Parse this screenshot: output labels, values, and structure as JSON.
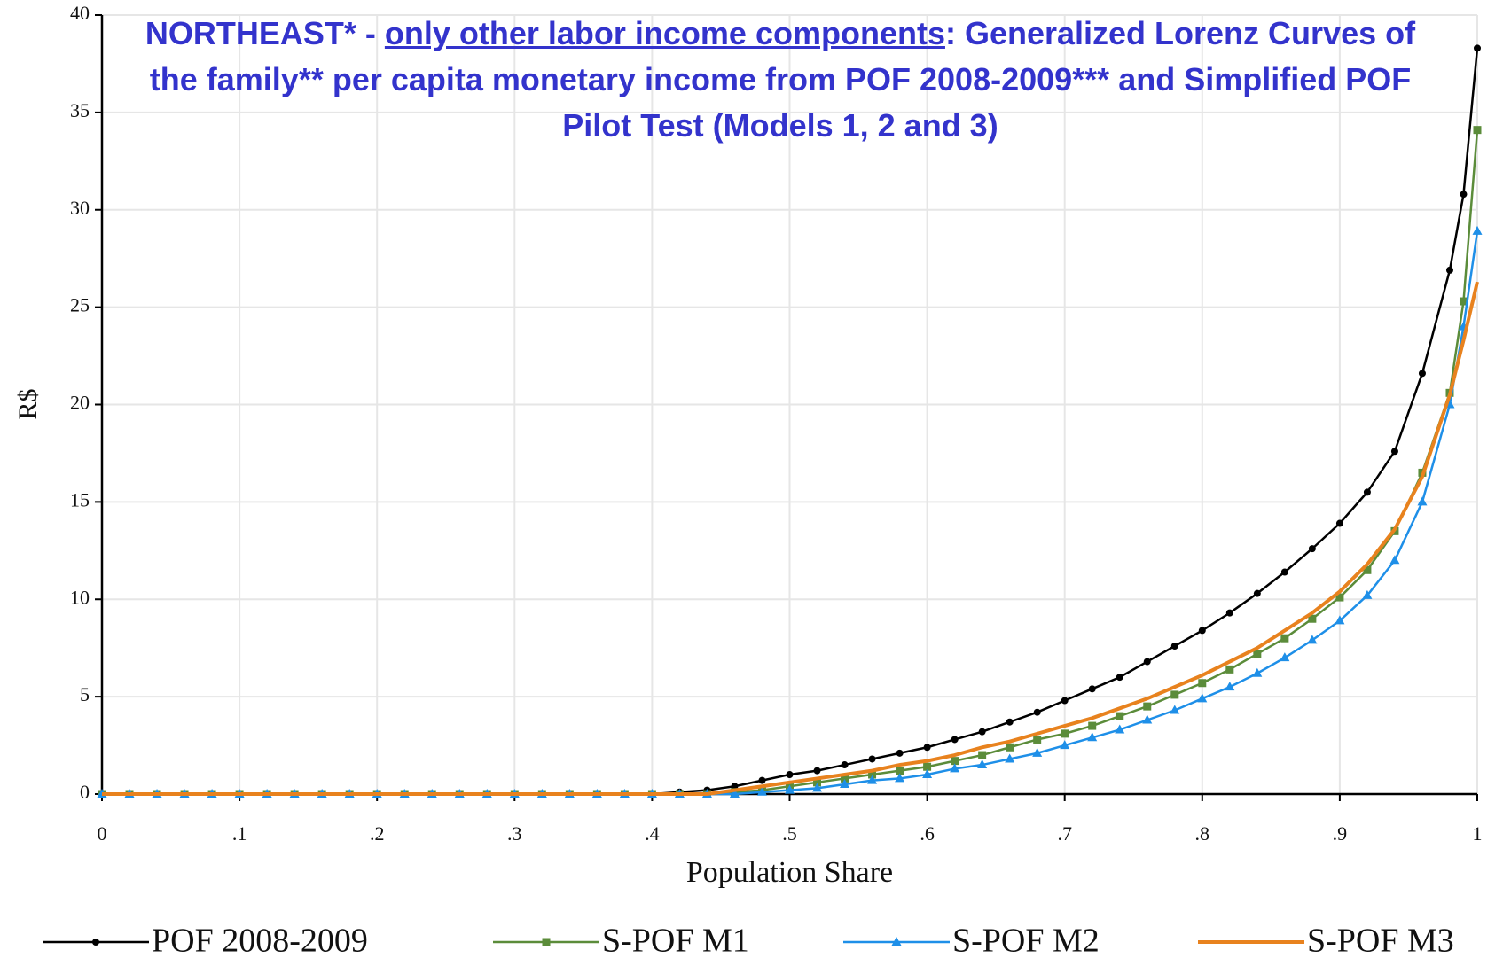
{
  "chart_data": {
    "type": "line",
    "title": [
      "NORTHEAST* - ",
      "only other labor income components",
      ": Generalized Lorenz Curves of the family** per capita monetary income from POF 2008-2009*** and Simplified POF Pilot Test (Models 1, 2 and 3)"
    ],
    "title_underlined": 1,
    "title_color": "#3333cc",
    "xlabel": "Population Share",
    "ylabel": "R$",
    "x": [
      0,
      0.02,
      0.04,
      0.06,
      0.08,
      0.1,
      0.12,
      0.14,
      0.16,
      0.18,
      0.2,
      0.22,
      0.24,
      0.26,
      0.28,
      0.3,
      0.32,
      0.34,
      0.36,
      0.38,
      0.4,
      0.42,
      0.44,
      0.46,
      0.48,
      0.5,
      0.52,
      0.54,
      0.56,
      0.58,
      0.6,
      0.62,
      0.64,
      0.66,
      0.68,
      0.7,
      0.72,
      0.74,
      0.76,
      0.78,
      0.8,
      0.82,
      0.84,
      0.86,
      0.88,
      0.9,
      0.92,
      0.94,
      0.96,
      0.98,
      0.99,
      1
    ],
    "series": [
      {
        "name": "POF 2008-2009",
        "color": "#000000",
        "marker": "circle",
        "values": [
          0,
          0,
          0,
          0,
          0,
          0,
          0,
          0,
          0,
          0,
          0,
          0,
          0,
          0,
          0,
          0,
          0,
          0,
          0,
          0,
          0,
          0.1,
          0.2,
          0.4,
          0.7,
          1.0,
          1.2,
          1.5,
          1.8,
          2.1,
          2.4,
          2.8,
          3.2,
          3.7,
          4.2,
          4.8,
          5.4,
          6.0,
          6.8,
          7.6,
          8.4,
          9.3,
          10.3,
          11.4,
          12.6,
          13.9,
          15.5,
          17.6,
          21.6,
          26.9,
          30.8,
          38.3
        ]
      },
      {
        "name": "S-POF M1",
        "color": "#5b8c3a",
        "marker": "square",
        "values": [
          0,
          0,
          0,
          0,
          0,
          0,
          0,
          0,
          0,
          0,
          0,
          0,
          0,
          0,
          0,
          0,
          0,
          0,
          0,
          0,
          0,
          0,
          0,
          0.1,
          0.2,
          0.4,
          0.6,
          0.8,
          1.0,
          1.2,
          1.4,
          1.7,
          2.0,
          2.4,
          2.8,
          3.1,
          3.5,
          4.0,
          4.5,
          5.1,
          5.7,
          6.4,
          7.2,
          8.0,
          9.0,
          10.1,
          11.5,
          13.5,
          16.5,
          20.6,
          25.3,
          34.1
        ]
      },
      {
        "name": "S-POF M2",
        "color": "#1e8fe8",
        "marker": "triangle",
        "values": [
          0,
          0,
          0,
          0,
          0,
          0,
          0,
          0,
          0,
          0,
          0,
          0,
          0,
          0,
          0,
          0,
          0,
          0,
          0,
          0,
          0,
          0,
          0,
          0,
          0.1,
          0.2,
          0.3,
          0.5,
          0.7,
          0.8,
          1.0,
          1.3,
          1.5,
          1.8,
          2.1,
          2.5,
          2.9,
          3.3,
          3.8,
          4.3,
          4.9,
          5.5,
          6.2,
          7.0,
          7.9,
          8.9,
          10.2,
          12.0,
          15.0,
          20.0,
          24.0,
          28.9
        ]
      },
      {
        "name": "S-POF M3",
        "color": "#e8821e",
        "marker": "none",
        "values": [
          0,
          0,
          0,
          0,
          0,
          0,
          0,
          0,
          0,
          0,
          0,
          0,
          0,
          0,
          0,
          0,
          0,
          0,
          0,
          0,
          0,
          0,
          0,
          0.2,
          0.4,
          0.6,
          0.8,
          1.0,
          1.2,
          1.5,
          1.7,
          2.0,
          2.4,
          2.7,
          3.1,
          3.5,
          3.9,
          4.4,
          4.9,
          5.5,
          6.1,
          6.8,
          7.5,
          8.4,
          9.3,
          10.4,
          11.8,
          13.6,
          16.3,
          20.5,
          23.3,
          26.3
        ]
      }
    ],
    "xlim": [
      0,
      1
    ],
    "xticks": [
      0,
      {
        "value": 0.1,
        "label": ".1"
      },
      {
        "value": 0.2,
        "label": ".2"
      },
      {
        "value": 0.3,
        "label": ".3"
      },
      {
        "value": 0.4,
        "label": ".4"
      },
      {
        "value": 0.5,
        "label": ".5"
      },
      {
        "value": 0.6,
        "label": ".6"
      },
      {
        "value": 0.7,
        "label": ".7"
      },
      {
        "value": 0.8,
        "label": ".8"
      },
      {
        "value": 0.9,
        "label": ".9"
      },
      1
    ],
    "ylim": [
      0,
      40
    ],
    "yticks": [
      0,
      5,
      10,
      15,
      20,
      25,
      30,
      35,
      40
    ],
    "grid": true,
    "legend": "bottom"
  }
}
